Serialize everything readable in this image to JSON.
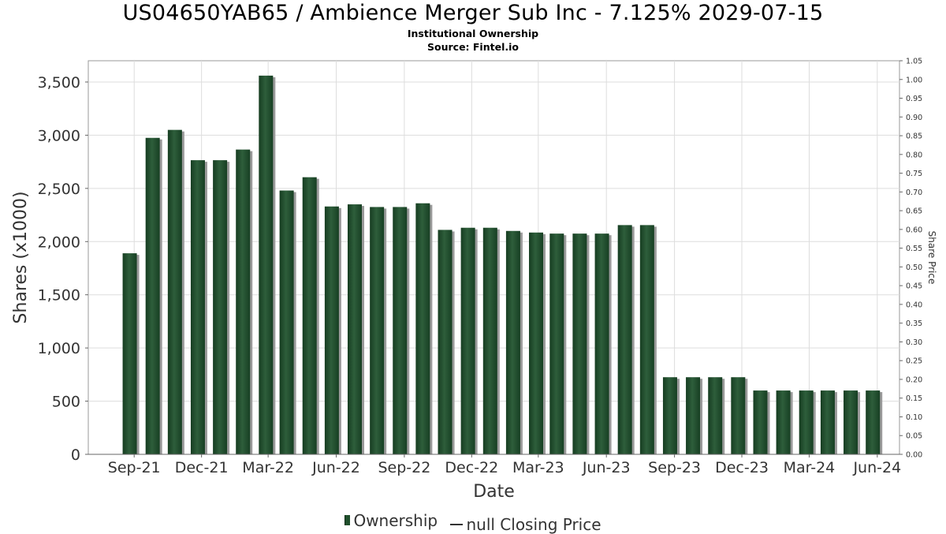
{
  "chart_data": {
    "type": "bar",
    "title": "US04650YAB65 / Ambience Merger Sub Inc - 7.125% 2029-07-15",
    "subtitle": "Institutional Ownership",
    "source": "Source: Fintel.io",
    "xlabel": "Date",
    "ylabel": "Shares (x1000)",
    "y2label": "Share Price",
    "ylim": [
      0,
      3700
    ],
    "y2lim": [
      0,
      1.05
    ],
    "xlim": [
      "2021-07-01",
      "2024-07-01"
    ],
    "yticks": [
      0,
      500,
      1000,
      1500,
      2000,
      2500,
      3000,
      3500
    ],
    "ytick_labels": [
      "0",
      "500",
      "1,000",
      "1,500",
      "2,000",
      "2,500",
      "3,000",
      "3,500"
    ],
    "y2ticks": [
      "0.00",
      "0.05",
      "0.10",
      "0.15",
      "0.20",
      "0.25",
      "0.30",
      "0.35",
      "0.40",
      "0.45",
      "0.50",
      "0.55",
      "0.60",
      "0.65",
      "0.70",
      "0.75",
      "0.80",
      "0.85",
      "0.90",
      "0.95",
      "1.00",
      "1.05"
    ],
    "xticks": [
      {
        "date": "2021-09-01",
        "label": "Sep-21"
      },
      {
        "date": "2021-12-01",
        "label": "Dec-21"
      },
      {
        "date": "2022-03-01",
        "label": "Mar-22"
      },
      {
        "date": "2022-06-01",
        "label": "Jun-22"
      },
      {
        "date": "2022-09-01",
        "label": "Sep-22"
      },
      {
        "date": "2022-12-01",
        "label": "Dec-22"
      },
      {
        "date": "2023-03-01",
        "label": "Mar-23"
      },
      {
        "date": "2023-06-01",
        "label": "Jun-23"
      },
      {
        "date": "2023-09-01",
        "label": "Sep-23"
      },
      {
        "date": "2023-12-01",
        "label": "Dec-23"
      },
      {
        "date": "2024-03-01",
        "label": "Mar-24"
      },
      {
        "date": "2024-06-01",
        "label": "Jun-24"
      }
    ],
    "x": [
      "2021-08-26",
      "2021-09-26",
      "2021-10-26",
      "2021-11-26",
      "2021-12-26",
      "2022-01-26",
      "2022-02-26",
      "2022-03-26",
      "2022-04-26",
      "2022-05-26",
      "2022-06-26",
      "2022-07-26",
      "2022-08-26",
      "2022-09-26",
      "2022-10-26",
      "2022-11-26",
      "2022-12-26",
      "2023-01-26",
      "2023-02-26",
      "2023-03-26",
      "2023-04-26",
      "2023-05-26",
      "2023-06-26",
      "2023-07-26",
      "2023-08-26",
      "2023-09-26",
      "2023-10-26",
      "2023-11-26",
      "2023-12-26",
      "2024-01-26",
      "2024-02-26",
      "2024-03-26",
      "2024-04-26",
      "2024-05-26"
    ],
    "values": [
      1890,
      2975,
      3050,
      2765,
      2765,
      2865,
      3560,
      2480,
      2605,
      2330,
      2350,
      2325,
      2325,
      2360,
      2110,
      2130,
      2130,
      2100,
      2085,
      2075,
      2075,
      2075,
      2155,
      2155,
      725,
      725,
      725,
      725,
      600,
      600,
      600,
      600,
      600,
      600
    ],
    "series": [
      {
        "name": "Ownership",
        "type": "bar",
        "color": "#1f4f2c"
      },
      {
        "name": "null Closing Price",
        "type": "line",
        "color": "#333333"
      }
    ],
    "grid": true,
    "legend_position": "bottom-center"
  },
  "legend": {
    "ownership_label": "Ownership",
    "price_label": "null Closing Price"
  }
}
